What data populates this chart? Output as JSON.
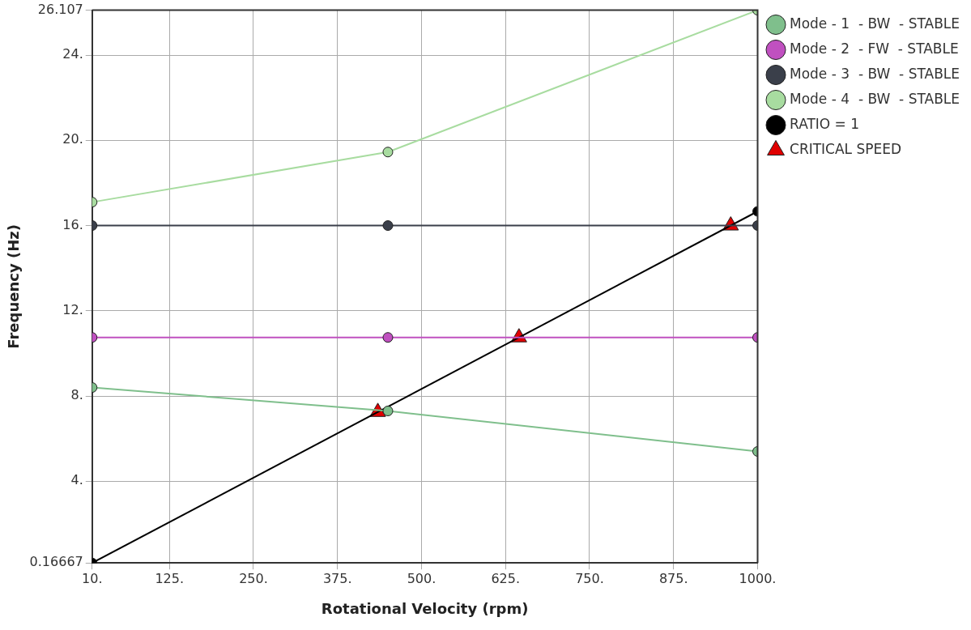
{
  "chart_data": {
    "type": "line",
    "xlabel": "Rotational Velocity (rpm)",
    "ylabel": "Frequency (Hz)",
    "xlim": [
      10,
      1000
    ],
    "xticks": [
      {
        "value": 10,
        "label": "10."
      },
      {
        "value": 125,
        "label": "125."
      },
      {
        "value": 250,
        "label": "250."
      },
      {
        "value": 375,
        "label": "375."
      },
      {
        "value": 500,
        "label": "500."
      },
      {
        "value": 625,
        "label": "625."
      },
      {
        "value": 750,
        "label": "750."
      },
      {
        "value": 875,
        "label": "875."
      },
      {
        "value": 1000,
        "label": "1000."
      }
    ],
    "ylim": [
      0.16667,
      26.107
    ],
    "yticks": [
      0.16667,
      {
        "value": 4,
        "label": "4."
      },
      {
        "value": 8,
        "label": "8."
      },
      {
        "value": 12,
        "label": "12."
      },
      {
        "value": 16,
        "label": "16."
      },
      {
        "value": 20,
        "label": "20."
      },
      {
        "value": 24,
        "label": "24."
      },
      26.107
    ],
    "grid": true,
    "legend": "right",
    "marker": "circle",
    "line_style": "solid",
    "series": [
      {
        "name": "Mode - 1  - BW  - STABLE",
        "color": "#7fbf8c",
        "x": [
          10,
          450,
          1000
        ],
        "values": [
          8.4,
          7.3,
          5.4
        ]
      },
      {
        "name": "Mode - 2  - FW  - STABLE",
        "color": "#c050c0",
        "x": [
          10,
          450,
          1000
        ],
        "values": [
          10.75,
          10.75,
          10.75
        ]
      },
      {
        "name": "Mode - 3  - BW  - STABLE",
        "color": "#3a3f4a",
        "x": [
          10,
          450,
          1000
        ],
        "values": [
          16,
          16,
          16
        ]
      },
      {
        "name": "Mode - 4  - BW  - STABLE",
        "color": "#a8dca0",
        "x": [
          10,
          450,
          1000
        ],
        "values": [
          17.1,
          19.45,
          26.107
        ]
      },
      {
        "name": "RATIO = 1",
        "color": "#000000",
        "x": [
          10,
          1000
        ],
        "values": [
          0.16667,
          16.667
        ]
      },
      {
        "name": "CRITICAL SPEED",
        "type": "scatter",
        "marker": "triangle",
        "color": "#e00000",
        "x": [
          435,
          645,
          960
        ],
        "values": [
          7.25,
          10.75,
          16
        ]
      }
    ]
  }
}
